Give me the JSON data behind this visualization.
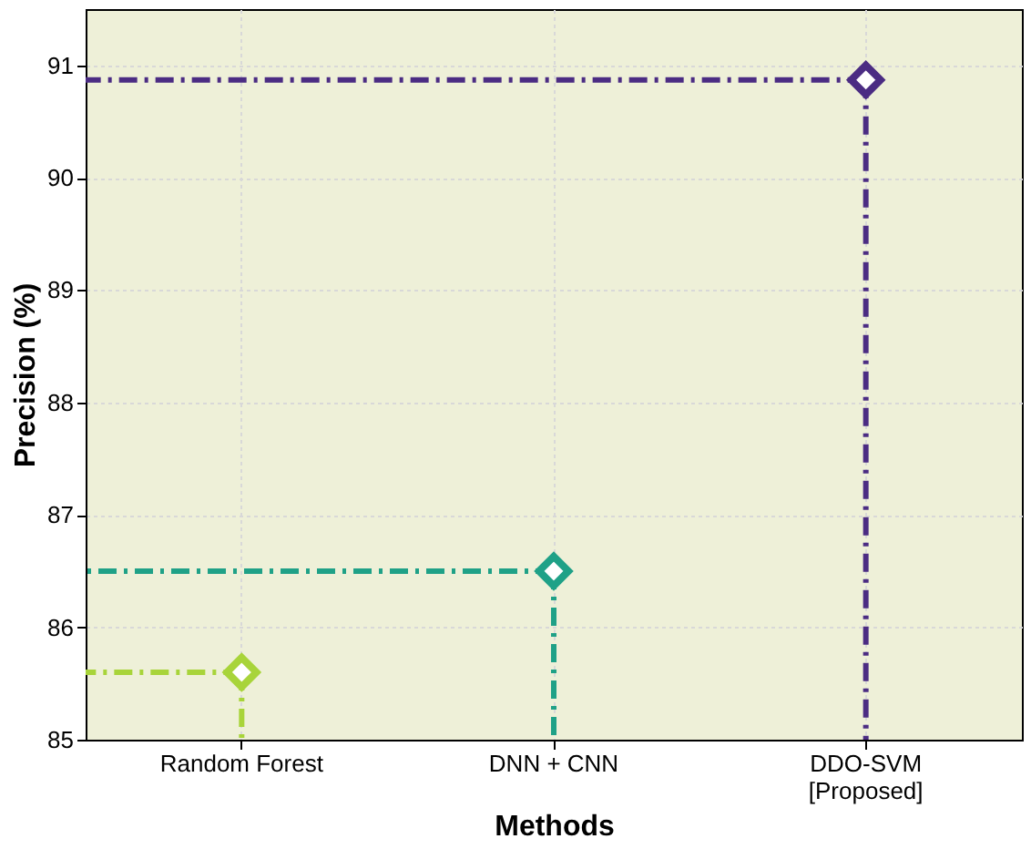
{
  "chart_data": {
    "type": "lollipop",
    "xlabel": "Methods",
    "ylabel": "Precision (%)",
    "categories": [
      "Random Forest",
      "DNN + CNN",
      "DDO-SVM\n[Proposed]"
    ],
    "values": [
      85.6,
      86.5,
      90.87
    ],
    "colors": [
      "#a8d43a",
      "#1fa187",
      "#4b2c83"
    ],
    "ylim": [
      85,
      91.5
    ],
    "yticks": [
      85,
      86,
      87,
      88,
      89,
      90,
      91
    ],
    "ref_lines": [
      {
        "axis": "y",
        "value": 85.6,
        "color": "#a8d43a",
        "line_style": "dashed"
      },
      {
        "axis": "y",
        "value": 86.5,
        "color": "#1fa187",
        "line_style": "dashed"
      },
      {
        "axis": "y",
        "value": 90.87,
        "color": "#4b2c83",
        "line_style": "dashed"
      }
    ],
    "grid": true,
    "marker": "diamond",
    "line_style": "dashed"
  }
}
